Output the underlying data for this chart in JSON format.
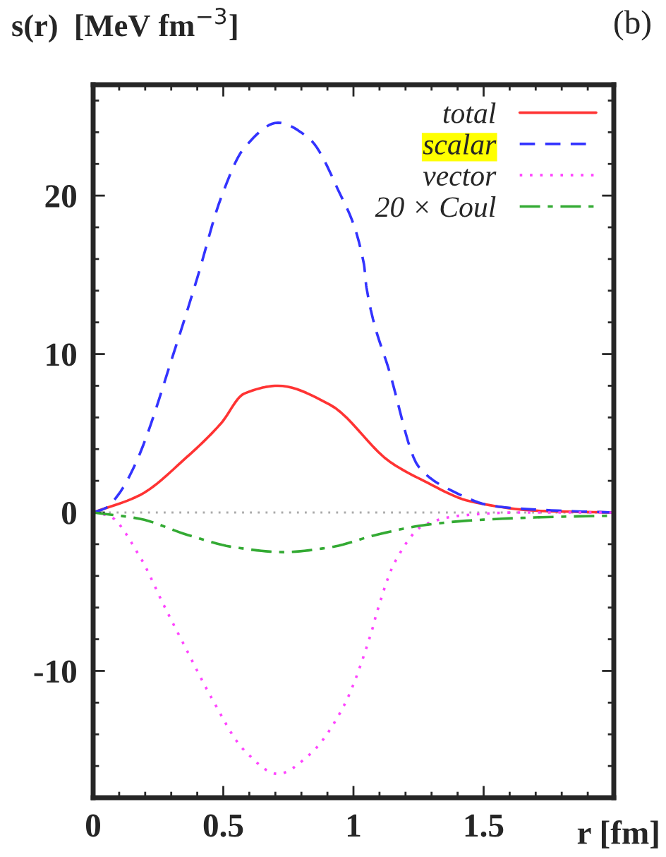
{
  "chart_data": {
    "type": "line",
    "ylabel": "s(r)  [MeV fm$^{−3}$]",
    "xlabel": "r [fm]",
    "annotations": [
      "(b)"
    ],
    "xlim": [
      0,
      2
    ],
    "ylim": [
      -18,
      27
    ],
    "xticks": [
      0,
      0.5,
      1,
      1.5
    ],
    "yticks": [
      {
        "value": -10,
        "label": "-10"
      },
      0,
      10,
      20
    ],
    "grid": false,
    "legend": "top right",
    "ref_lines": [
      {
        "axis": "y",
        "value": 0,
        "color": "#aaaaaa",
        "line_style": "dotted"
      }
    ],
    "series": [
      {
        "name": "total",
        "color": "#ff3333",
        "line_style": "solid",
        "x": [
          0,
          0.18,
          0.36,
          0.49,
          0.58,
          0.71,
          0.91,
          1.14,
          1.27,
          1.45,
          1.72,
          2.0
        ],
        "values": [
          0,
          1.1,
          3.5,
          5.6,
          7.5,
          8.0,
          6.8,
          3.2,
          2.0,
          0.7,
          0.1,
          0
        ]
      },
      {
        "name": "scalar",
        "color": "#3333ff",
        "line_style": "dashed",
        "x": [
          0,
          0.05,
          0.1,
          0.166,
          0.32,
          0.4,
          0.49,
          0.58,
          0.71,
          0.83,
          0.94,
          1.04,
          1.05,
          1.14,
          1.25,
          1.375,
          1.54,
          1.81,
          2.0
        ],
        "values": [
          0,
          0.3,
          1.2,
          3.2,
          10.6,
          14.8,
          19.8,
          23.0,
          24.6,
          23.6,
          20.4,
          15.7,
          14.2,
          8.8,
          2.9,
          1.4,
          0.4,
          0.1,
          0
        ]
      },
      {
        "name": "vector",
        "color": "#ff44ff",
        "line_style": "dotted",
        "x": [
          0,
          0.06,
          0.18,
          0.27,
          0.36,
          0.455,
          0.58,
          0.71,
          0.83,
          0.96,
          1.07,
          1.09,
          1.16,
          1.27,
          1.41,
          1.63,
          2.0
        ],
        "values": [
          0,
          -0.2,
          -2.8,
          -5.8,
          -8.7,
          -11.7,
          -15.0,
          -16.5,
          -15.3,
          -12.3,
          -7.5,
          -6.3,
          -3.1,
          -0.8,
          -0.2,
          0,
          0
        ]
      },
      {
        "name": "20 × Coul",
        "color": "#33aa33",
        "line_style": "dashdot",
        "x": [
          0,
          0.18,
          0.36,
          0.545,
          0.73,
          0.91,
          1.09,
          1.27,
          1.45,
          1.72,
          1.99
        ],
        "values": [
          0,
          -0.4,
          -1.4,
          -2.2,
          -2.5,
          -2.2,
          -1.4,
          -0.8,
          -0.5,
          -0.3,
          -0.2
        ]
      }
    ]
  }
}
